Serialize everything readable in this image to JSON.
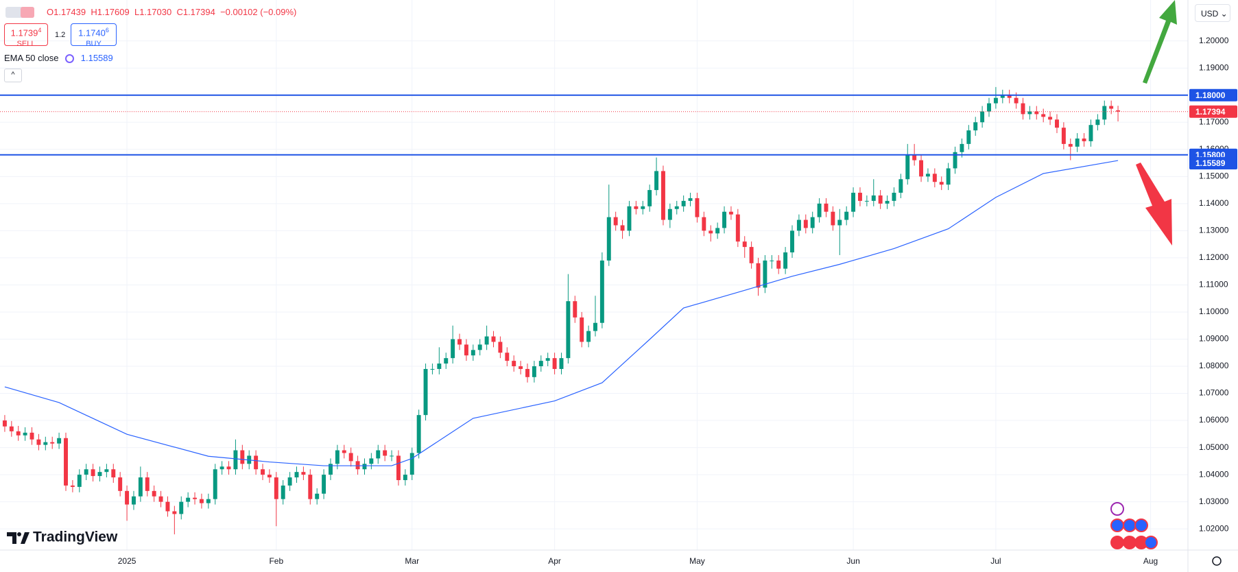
{
  "header": {
    "ohlc": [
      "O1.17439",
      "H1.17609",
      "L1.17030",
      "C1.17394"
    ],
    "change": "−0.00102 (−0.09%)",
    "sell_price": "1.1739",
    "sell_pip": "4",
    "sell_label": "SELL",
    "spread": "1.2",
    "buy_price": "1.1740",
    "buy_pip": "6",
    "buy_label": "BUY",
    "currency": "USD",
    "brand": "TradingView"
  },
  "chart_data": {
    "type": "candlestick",
    "up_color": "#089981",
    "down_color": "#f23645",
    "open": [
      1.06,
      1.0578,
      1.056,
      1.0545,
      1.0555,
      1.053,
      1.051,
      1.052,
      1.0515,
      1.0535,
      1.036,
      1.0355,
      1.04,
      1.042,
      1.0395,
      1.041,
      1.042,
      1.039,
      1.034,
      1.029,
      1.032,
      1.039,
      1.034,
      1.032,
      1.03,
      1.0265,
      1.0255,
      1.03,
      1.0315,
      1.031,
      1.0295,
      1.031,
      1.042,
      1.043,
      1.042,
      1.049,
      1.044,
      1.047,
      1.042,
      1.04,
      1.039,
      1.031,
      1.036,
      1.039,
      1.041,
      1.04,
      1.031,
      1.033,
      1.04,
      1.044,
      1.049,
      1.048,
      1.045,
      1.042,
      1.044,
      1.046,
      1.049,
      1.047,
      1.047,
      1.038,
      1.04,
      1.048,
      1.062,
      1.079,
      1.079,
      1.081,
      1.083,
      1.09,
      1.088,
      1.084,
      1.086,
      1.088,
      1.091,
      1.089,
      1.085,
      1.082,
      1.08,
      1.079,
      1.076,
      1.08,
      1.082,
      1.083,
      1.079,
      1.083,
      1.104,
      1.098,
      1.089,
      1.093,
      1.096,
      1.119,
      1.135,
      1.132,
      1.13,
      1.139,
      1.138,
      1.139,
      1.145,
      1.152,
      1.134,
      1.138,
      1.139,
      1.141,
      1.142,
      1.135,
      1.13,
      1.129,
      1.131,
      1.137,
      1.136,
      1.126,
      1.124,
      1.118,
      1.109,
      1.119,
      1.119,
      1.116,
      1.122,
      1.13,
      1.134,
      1.131,
      1.135,
      1.14,
      1.137,
      1.132,
      1.134,
      1.137,
      1.144,
      1.141,
      1.141,
      1.143,
      1.14,
      1.141,
      1.144,
      1.149,
      1.158,
      1.156,
      1.15,
      1.151,
      1.148,
      1.147,
      1.153,
      1.159,
      1.162,
      1.167,
      1.17,
      1.174,
      1.177,
      1.179,
      1.18,
      1.179,
      1.177,
      1.173,
      1.174,
      1.173,
      1.172,
      1.171,
      1.168,
      1.162,
      1.161,
      1.164,
      1.163,
      1.169,
      1.171,
      1.176,
      1.17439
    ],
    "high": [
      1.062,
      1.0598,
      1.058,
      1.0575,
      1.0575,
      1.055,
      1.054,
      1.054,
      1.0555,
      1.0555,
      1.038,
      1.042,
      1.044,
      1.044,
      1.043,
      1.044,
      1.044,
      1.041,
      1.036,
      1.034,
      1.043,
      1.041,
      1.036,
      1.034,
      1.032,
      1.0285,
      1.032,
      1.0335,
      1.0335,
      1.033,
      1.033,
      1.044,
      1.045,
      1.045,
      1.053,
      1.051,
      1.049,
      1.049,
      1.044,
      1.042,
      1.041,
      1.038,
      1.041,
      1.043,
      1.043,
      1.042,
      1.035,
      1.042,
      1.046,
      1.051,
      1.051,
      1.05,
      1.047,
      1.046,
      1.048,
      1.051,
      1.051,
      1.049,
      1.049,
      1.042,
      1.05,
      1.064,
      1.081,
      1.081,
      1.087,
      1.085,
      1.095,
      1.092,
      1.09,
      1.088,
      1.09,
      1.095,
      1.093,
      1.091,
      1.087,
      1.084,
      1.082,
      1.081,
      1.082,
      1.084,
      1.085,
      1.085,
      1.085,
      1.114,
      1.106,
      1.1,
      1.095,
      1.106,
      1.122,
      1.147,
      1.137,
      1.134,
      1.141,
      1.141,
      1.141,
      1.147,
      1.157,
      1.154,
      1.14,
      1.141,
      1.143,
      1.144,
      1.144,
      1.137,
      1.132,
      1.133,
      1.139,
      1.139,
      1.138,
      1.128,
      1.126,
      1.12,
      1.121,
      1.121,
      1.121,
      1.124,
      1.132,
      1.136,
      1.136,
      1.137,
      1.142,
      1.142,
      1.139,
      1.138,
      1.139,
      1.146,
      1.146,
      1.143,
      1.149,
      1.145,
      1.143,
      1.146,
      1.151,
      1.162,
      1.162,
      1.158,
      1.153,
      1.153,
      1.15,
      1.155,
      1.161,
      1.164,
      1.169,
      1.172,
      1.176,
      1.179,
      1.183,
      1.182,
      1.182,
      1.181,
      1.179,
      1.176,
      1.176,
      1.175,
      1.174,
      1.173,
      1.17,
      1.164,
      1.166,
      1.166,
      1.171,
      1.173,
      1.178,
      1.178,
      1.17609
    ],
    "low": [
      1.0558,
      1.054,
      1.0525,
      1.0525,
      1.051,
      1.049,
      1.049,
      1.0495,
      1.0495,
      1.034,
      1.0335,
      1.0335,
      1.038,
      1.0375,
      1.0375,
      1.039,
      1.037,
      1.032,
      1.023,
      1.027,
      1.03,
      1.032,
      1.03,
      1.028,
      1.0245,
      1.018,
      1.0235,
      1.028,
      1.029,
      1.0275,
      1.0275,
      1.029,
      1.04,
      1.04,
      1.04,
      1.042,
      1.042,
      1.04,
      1.038,
      1.037,
      1.021,
      1.029,
      1.034,
      1.037,
      1.038,
      1.029,
      1.029,
      1.031,
      1.038,
      1.042,
      1.046,
      1.043,
      1.04,
      1.04,
      1.042,
      1.044,
      1.045,
      1.045,
      1.036,
      1.036,
      1.038,
      1.046,
      1.06,
      1.077,
      1.077,
      1.079,
      1.081,
      1.086,
      1.082,
      1.082,
      1.084,
      1.086,
      1.087,
      1.083,
      1.08,
      1.078,
      1.077,
      1.074,
      1.074,
      1.078,
      1.08,
      1.077,
      1.077,
      1.081,
      1.096,
      1.087,
      1.087,
      1.091,
      1.094,
      1.117,
      1.13,
      1.127,
      1.128,
      1.136,
      1.136,
      1.137,
      1.143,
      1.132,
      1.131,
      1.136,
      1.137,
      1.139,
      1.133,
      1.128,
      1.126,
      1.127,
      1.129,
      1.134,
      1.124,
      1.12,
      1.116,
      1.106,
      1.107,
      1.116,
      1.114,
      1.114,
      1.12,
      1.128,
      1.129,
      1.129,
      1.133,
      1.135,
      1.13,
      1.121,
      1.132,
      1.135,
      1.139,
      1.139,
      1.139,
      1.138,
      1.138,
      1.139,
      1.142,
      1.147,
      1.154,
      1.148,
      1.148,
      1.146,
      1.145,
      1.145,
      1.151,
      1.157,
      1.16,
      1.165,
      1.168,
      1.172,
      1.175,
      1.177,
      1.177,
      1.175,
      1.171,
      1.171,
      1.171,
      1.17,
      1.169,
      1.166,
      1.16,
      1.156,
      1.159,
      1.161,
      1.161,
      1.167,
      1.169,
      1.173,
      1.1703
    ],
    "close": [
      1.0578,
      1.056,
      1.0545,
      1.0555,
      1.053,
      1.051,
      1.052,
      1.0515,
      1.0535,
      1.036,
      1.0355,
      1.04,
      1.042,
      1.0395,
      1.041,
      1.042,
      1.039,
      1.034,
      1.029,
      1.032,
      1.039,
      1.034,
      1.032,
      1.03,
      1.0265,
      1.0255,
      1.03,
      1.0315,
      1.031,
      1.0295,
      1.031,
      1.042,
      1.043,
      1.042,
      1.049,
      1.044,
      1.047,
      1.042,
      1.04,
      1.039,
      1.031,
      1.036,
      1.039,
      1.041,
      1.04,
      1.031,
      1.033,
      1.04,
      1.044,
      1.049,
      1.048,
      1.045,
      1.042,
      1.044,
      1.046,
      1.049,
      1.047,
      1.047,
      1.038,
      1.04,
      1.048,
      1.062,
      1.079,
      1.079,
      1.081,
      1.083,
      1.09,
      1.088,
      1.084,
      1.086,
      1.088,
      1.091,
      1.089,
      1.085,
      1.082,
      1.08,
      1.079,
      1.076,
      1.08,
      1.082,
      1.083,
      1.079,
      1.083,
      1.104,
      1.098,
      1.089,
      1.093,
      1.096,
      1.119,
      1.135,
      1.132,
      1.13,
      1.139,
      1.138,
      1.139,
      1.145,
      1.152,
      1.134,
      1.138,
      1.139,
      1.141,
      1.142,
      1.135,
      1.13,
      1.129,
      1.131,
      1.137,
      1.136,
      1.126,
      1.124,
      1.118,
      1.109,
      1.119,
      1.119,
      1.116,
      1.122,
      1.13,
      1.134,
      1.131,
      1.135,
      1.14,
      1.137,
      1.132,
      1.134,
      1.137,
      1.144,
      1.141,
      1.141,
      1.143,
      1.14,
      1.141,
      1.144,
      1.149,
      1.158,
      1.156,
      1.15,
      1.151,
      1.148,
      1.147,
      1.153,
      1.159,
      1.162,
      1.167,
      1.17,
      1.174,
      1.177,
      1.179,
      1.18,
      1.179,
      1.177,
      1.173,
      1.174,
      1.173,
      1.172,
      1.171,
      1.168,
      1.162,
      1.161,
      1.164,
      1.163,
      1.169,
      1.171,
      1.176,
      1.175,
      1.17394
    ],
    "ema": {
      "name": "EMA 50 close",
      "color": "#2962ff",
      "x": [
        0,
        8,
        18,
        30,
        39,
        47,
        57,
        60,
        69,
        81,
        88,
        95,
        100,
        109,
        116,
        123,
        131,
        139,
        146,
        153,
        164
      ],
      "values": [
        1.0724,
        1.0666,
        1.0549,
        1.0468,
        1.0447,
        1.0433,
        1.0433,
        1.046,
        1.0608,
        1.0672,
        1.0739,
        1.0899,
        1.1015,
        1.108,
        1.1132,
        1.1176,
        1.1234,
        1.1307,
        1.1423,
        1.1511,
        1.15589
      ]
    },
    "levels": [
      {
        "value": 1.18,
        "label": "1.18000"
      },
      {
        "value": 1.158,
        "label": "1.15800"
      }
    ],
    "level_color": "#1e53e5",
    "xlim": [
      -0.7,
      174.3
    ],
    "xticks": [
      {
        "value": 18,
        "label": "2025"
      },
      {
        "value": 40,
        "label": "Feb"
      },
      {
        "value": 60,
        "label": "Mar"
      },
      {
        "value": 81,
        "label": "Apr"
      },
      {
        "value": 102,
        "label": "May"
      },
      {
        "value": 125,
        "label": "Jun"
      },
      {
        "value": 146,
        "label": "Jul"
      },
      {
        "value": 168.8,
        "label": "Aug"
      }
    ],
    "ylim": [
      1.0122,
      1.2151
    ],
    "yticks": [
      {
        "value": 1.2,
        "label": "1.20000"
      },
      {
        "value": 1.19,
        "label": "1.19000"
      },
      {
        "value": 1.18,
        "label": "1.18000"
      },
      {
        "value": 1.17,
        "label": "1.17000"
      },
      {
        "value": 1.16,
        "label": "1.16000"
      },
      {
        "value": 1.15,
        "label": "1.15000"
      },
      {
        "value": 1.14,
        "label": "1.14000"
      },
      {
        "value": 1.13,
        "label": "1.13000"
      },
      {
        "value": 1.12,
        "label": "1.12000"
      },
      {
        "value": 1.11,
        "label": "1.11000"
      },
      {
        "value": 1.1,
        "label": "1.10000"
      },
      {
        "value": 1.09,
        "label": "1.09000"
      },
      {
        "value": 1.08,
        "label": "1.08000"
      },
      {
        "value": 1.07,
        "label": "1.07000"
      },
      {
        "value": 1.06,
        "label": "1.06000"
      },
      {
        "value": 1.05,
        "label": "1.05000"
      },
      {
        "value": 1.04,
        "label": "1.04000"
      },
      {
        "value": 1.03,
        "label": "1.03000"
      },
      {
        "value": 1.02,
        "label": "1.02000"
      }
    ],
    "grid": true
  }
}
